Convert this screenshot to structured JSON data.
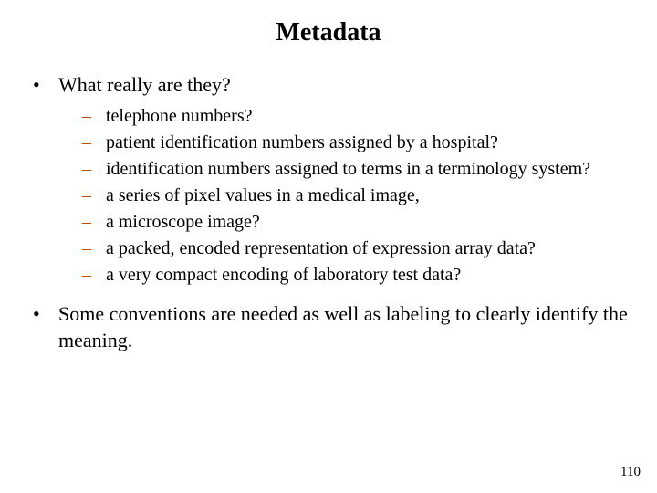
{
  "title": "Metadata",
  "bullets": {
    "b0": "What really are they?",
    "b1": "Some conventions are needed as well as labeling to clearly identify the meaning."
  },
  "subs": {
    "s0": "telephone numbers?",
    "s1": "patient identification numbers assigned by a hospital?",
    "s2": "identification numbers assigned to terms in a terminology system?",
    "s3": "a series of pixel values in a medical image,",
    "s4": "a microscope image?",
    "s5": "a packed, encoded representation of expression array data?",
    "s6": "a very compact encoding of laboratory test data?"
  },
  "page_number": "110",
  "colors": {
    "dash": "#c05000",
    "text": "#000000",
    "background": "#ffffff"
  },
  "fontsize": {
    "title": 28,
    "body": 22,
    "sub": 20,
    "pagenum": 15
  },
  "glyphs": {
    "bullet": "•",
    "dash": "–"
  }
}
